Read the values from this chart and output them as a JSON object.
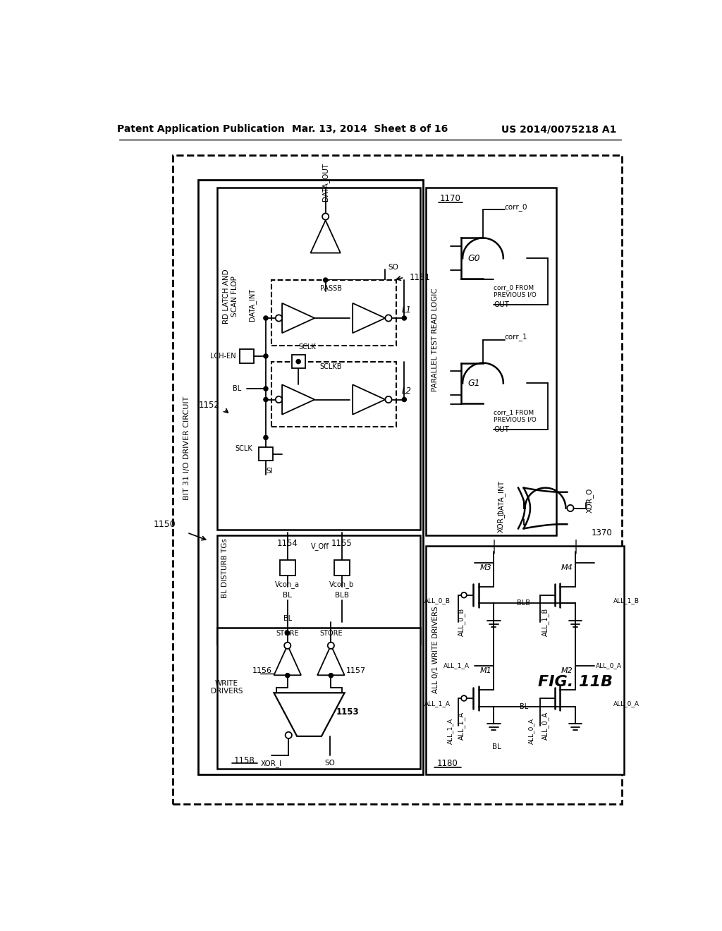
{
  "header_left": "Patent Application Publication",
  "header_mid": "Mar. 13, 2014  Sheet 8 of 16",
  "header_right": "US 2014/0075218 A1",
  "fig_label": "FIG. 11B",
  "bg": "#ffffff"
}
